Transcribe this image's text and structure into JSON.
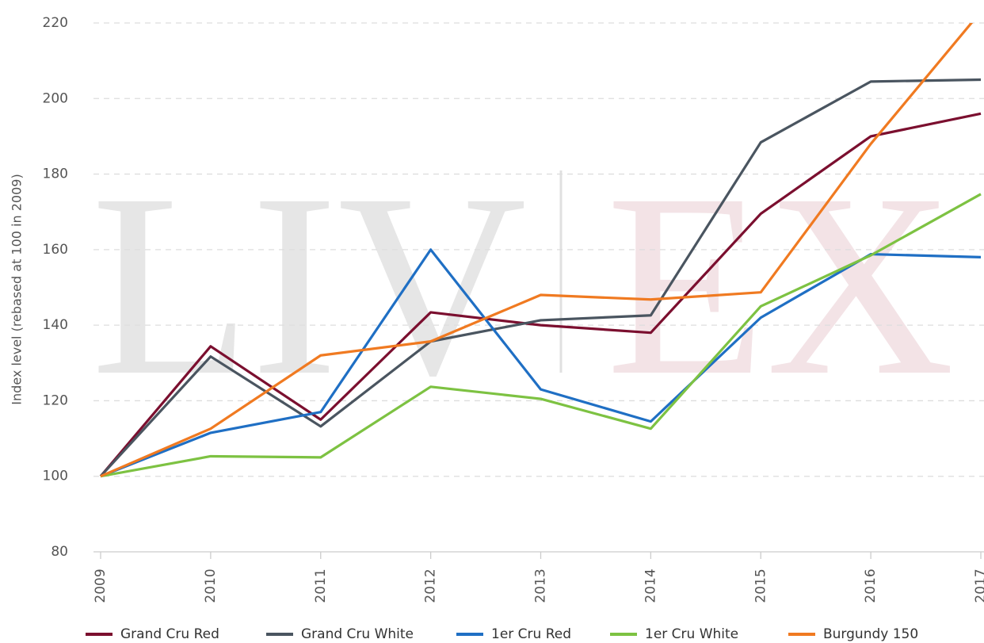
{
  "chart_data": {
    "type": "line",
    "y_label": "Index level (rebased at 100 in 2009)",
    "watermark": [
      "LIV",
      "EX"
    ],
    "categories": [
      "2009",
      "2010",
      "2011",
      "2012",
      "2013",
      "2014",
      "2015",
      "2016",
      "2017"
    ],
    "series": [
      {
        "name": "Grand Cru Red",
        "color": "#7b0f2f",
        "values": [
          100,
          134.4,
          115,
          143.4,
          140,
          138,
          169.5,
          190,
          196
        ]
      },
      {
        "name": "Grand Cru White",
        "color": "#4a5560",
        "values": [
          100,
          131.7,
          113.2,
          135.7,
          141.3,
          142.6,
          188.4,
          204.5,
          205
        ]
      },
      {
        "name": "1er Cru Red",
        "color": "#1f6fc4",
        "values": [
          100,
          111.5,
          117,
          160,
          123,
          114.5,
          142,
          158.8,
          158
        ]
      },
      {
        "name": "1er Cru White",
        "color": "#7dc242",
        "values": [
          100,
          105.3,
          105,
          123.7,
          120.5,
          112.6,
          145,
          158.5,
          174.7
        ]
      },
      {
        "name": "Burgundy 150",
        "color": "#f07a21",
        "values": [
          100,
          112.6,
          132,
          135.7,
          148,
          146.8,
          148.7,
          188,
          223
        ]
      }
    ],
    "ylim": [
      80,
      220
    ],
    "yticks": [
      80,
      100,
      120,
      140,
      160,
      180,
      200,
      220
    ],
    "grid": true,
    "legend": "bottom"
  }
}
